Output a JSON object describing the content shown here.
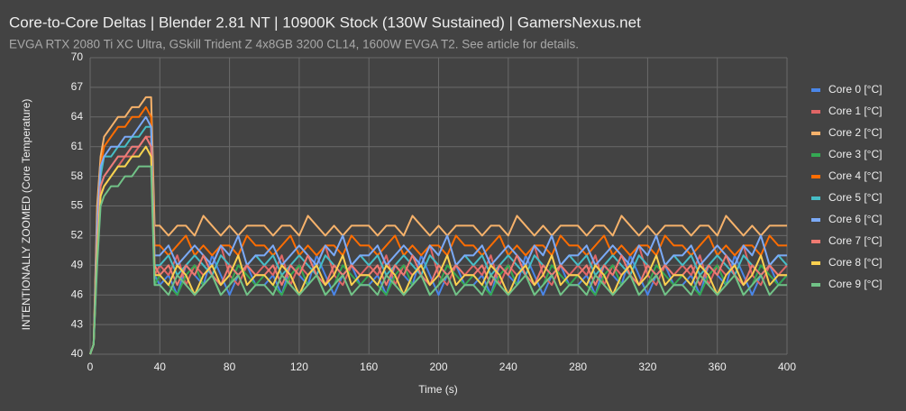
{
  "chart_data": {
    "type": "line",
    "title": "Core-to-Core Deltas | Blender 2.81 NT | 10900K Stock (130W Sustained) | GamersNexus.net",
    "subtitle": "EVGA RTX 2080 Ti XC Ultra, GSkill Trident Z 4x8GB 3200 CL14, 1600W EVGA T2. See article for details.",
    "x_label": "Time (s)",
    "y_label": "INTENTIONALLY ZOOMED (Core Temperature)",
    "xlim": [
      0,
      400
    ],
    "xticks": [
      0,
      40,
      80,
      120,
      160,
      200,
      240,
      280,
      320,
      360,
      400
    ],
    "ylim": [
      40,
      70
    ],
    "yticks": [
      40,
      43,
      46,
      49,
      52,
      55,
      58,
      61,
      64,
      67,
      70
    ],
    "grid": true,
    "legend": "right",
    "x": [
      0,
      2,
      4,
      6,
      8,
      12,
      16,
      20,
      24,
      28,
      32,
      35,
      37,
      40,
      45,
      50,
      55,
      60,
      65,
      70,
      75,
      80,
      85,
      90,
      95,
      100,
      105,
      110,
      115,
      120,
      125,
      130,
      135,
      140,
      145,
      150,
      155,
      160,
      165,
      170,
      175,
      180,
      185,
      190,
      195,
      200,
      205,
      210,
      215,
      220,
      225,
      230,
      235,
      240,
      245,
      250,
      255,
      260,
      265,
      270,
      275,
      280,
      285,
      290,
      295,
      300,
      305,
      310,
      315,
      320,
      325,
      330,
      335,
      340,
      345,
      350,
      355,
      360,
      365,
      370,
      375,
      380,
      385,
      390,
      395,
      400
    ],
    "series": [
      {
        "name": "Core 0 [°C]",
        "color": "#4a86e8",
        "values": [
          40,
          41,
          52,
          57,
          58,
          59,
          60,
          60,
          61,
          61,
          62,
          61,
          48,
          47,
          48,
          46,
          49,
          48,
          47,
          50,
          48,
          46,
          48,
          49,
          47,
          47,
          48,
          46,
          49,
          48,
          47,
          50,
          48,
          46,
          48,
          49,
          47,
          47,
          48,
          46,
          49,
          48,
          47,
          50,
          48,
          46,
          48,
          49,
          47,
          47,
          48,
          46,
          49,
          48,
          47,
          50,
          48,
          46,
          48,
          49,
          47,
          47,
          48,
          46,
          49,
          48,
          47,
          50,
          48,
          46,
          48,
          49,
          47,
          47,
          48,
          46,
          49,
          48,
          47,
          50,
          48,
          46,
          48,
          49,
          47,
          48
        ]
      },
      {
        "name": "Core 1 [°C]",
        "color": "#e06666",
        "values": [
          40,
          41,
          50,
          56,
          57,
          58,
          59,
          60,
          60,
          61,
          62,
          62,
          48,
          49,
          48,
          50,
          47,
          49,
          48,
          49,
          51,
          48,
          47,
          49,
          48,
          49,
          48,
          50,
          47,
          49,
          48,
          49,
          51,
          48,
          47,
          49,
          48,
          49,
          48,
          50,
          47,
          49,
          48,
          49,
          51,
          48,
          47,
          49,
          48,
          49,
          48,
          50,
          47,
          49,
          48,
          49,
          51,
          48,
          47,
          49,
          48,
          49,
          48,
          50,
          47,
          49,
          48,
          49,
          51,
          48,
          47,
          49,
          48,
          49,
          48,
          50,
          47,
          49,
          48,
          49,
          51,
          48,
          47,
          49,
          48,
          49
        ]
      },
      {
        "name": "Core 2 [°C]",
        "color": "#f6b26b",
        "values": [
          40,
          41,
          55,
          60,
          62,
          63,
          64,
          64,
          65,
          65,
          66,
          66,
          53,
          53,
          52,
          53,
          53,
          52,
          54,
          53,
          52,
          53,
          52,
          53,
          53,
          53,
          52,
          53,
          53,
          52,
          54,
          53,
          52,
          53,
          52,
          53,
          53,
          53,
          52,
          53,
          53,
          52,
          54,
          53,
          52,
          53,
          52,
          53,
          53,
          53,
          52,
          53,
          53,
          52,
          54,
          53,
          52,
          53,
          52,
          53,
          53,
          53,
          52,
          53,
          53,
          52,
          54,
          53,
          52,
          53,
          52,
          53,
          53,
          53,
          52,
          53,
          53,
          52,
          54,
          53,
          52,
          53,
          52,
          53,
          53,
          53
        ]
      },
      {
        "name": "Core 3 [°C]",
        "color": "#34a853",
        "values": [
          40,
          41,
          51,
          56,
          57,
          58,
          59,
          59,
          60,
          60,
          61,
          60,
          47,
          48,
          47,
          46,
          48,
          49,
          47,
          48,
          46,
          47,
          49,
          48,
          47,
          48,
          47,
          46,
          48,
          49,
          47,
          48,
          46,
          47,
          49,
          48,
          47,
          48,
          47,
          46,
          48,
          49,
          47,
          48,
          46,
          47,
          49,
          48,
          47,
          48,
          47,
          46,
          48,
          49,
          47,
          48,
          46,
          47,
          49,
          48,
          47,
          48,
          47,
          46,
          48,
          49,
          47,
          48,
          46,
          47,
          49,
          48,
          47,
          48,
          47,
          46,
          48,
          49,
          47,
          48,
          46,
          47,
          49,
          48,
          47,
          48
        ]
      },
      {
        "name": "Core 4 [°C]",
        "color": "#ff6d01",
        "values": [
          40,
          41,
          53,
          59,
          61,
          62,
          63,
          63,
          64,
          64,
          65,
          64,
          51,
          51,
          50,
          51,
          52,
          50,
          51,
          50,
          51,
          51,
          50,
          52,
          51,
          51,
          50,
          51,
          52,
          50,
          51,
          50,
          51,
          51,
          50,
          52,
          51,
          51,
          50,
          51,
          52,
          50,
          51,
          50,
          51,
          51,
          50,
          52,
          51,
          51,
          50,
          51,
          52,
          50,
          51,
          50,
          51,
          51,
          50,
          52,
          51,
          51,
          50,
          51,
          52,
          50,
          51,
          50,
          51,
          51,
          50,
          52,
          51,
          51,
          50,
          51,
          52,
          50,
          51,
          50,
          51,
          51,
          50,
          52,
          51,
          51
        ]
      },
      {
        "name": "Core 5 [°C]",
        "color": "#46bdc6",
        "values": [
          40,
          41,
          52,
          58,
          60,
          60,
          61,
          61,
          62,
          62,
          63,
          63,
          49,
          49,
          50,
          48,
          49,
          50,
          49,
          48,
          50,
          49,
          48,
          49,
          50,
          49,
          50,
          48,
          49,
          50,
          49,
          48,
          50,
          49,
          48,
          49,
          50,
          49,
          50,
          48,
          49,
          50,
          49,
          48,
          50,
          49,
          48,
          49,
          50,
          49,
          50,
          48,
          49,
          50,
          49,
          48,
          50,
          49,
          48,
          49,
          50,
          49,
          50,
          48,
          49,
          50,
          49,
          48,
          50,
          49,
          48,
          49,
          50,
          49,
          50,
          48,
          49,
          50,
          49,
          48,
          50,
          49,
          48,
          49,
          50,
          49
        ]
      },
      {
        "name": "Core 6 [°C]",
        "color": "#7baaf7",
        "values": [
          40,
          41,
          53,
          59,
          60,
          61,
          61,
          62,
          62,
          63,
          64,
          63,
          50,
          50,
          51,
          49,
          50,
          51,
          50,
          49,
          51,
          50,
          52,
          49,
          50,
          50,
          51,
          49,
          50,
          51,
          50,
          49,
          51,
          50,
          52,
          49,
          50,
          50,
          51,
          49,
          50,
          51,
          50,
          49,
          51,
          50,
          52,
          49,
          50,
          50,
          51,
          49,
          50,
          51,
          50,
          49,
          51,
          50,
          52,
          49,
          50,
          50,
          51,
          49,
          50,
          51,
          50,
          49,
          51,
          50,
          52,
          49,
          50,
          50,
          51,
          49,
          50,
          51,
          50,
          49,
          51,
          50,
          52,
          49,
          50,
          50
        ]
      },
      {
        "name": "Core 7 [°C]",
        "color": "#f07b72",
        "values": [
          40,
          41,
          51,
          57,
          58,
          59,
          60,
          60,
          61,
          61,
          62,
          61,
          49,
          48,
          49,
          47,
          49,
          48,
          50,
          48,
          47,
          49,
          48,
          49,
          48,
          48,
          49,
          47,
          49,
          48,
          50,
          48,
          47,
          49,
          48,
          49,
          48,
          48,
          49,
          47,
          49,
          48,
          50,
          48,
          47,
          49,
          48,
          49,
          48,
          48,
          49,
          47,
          49,
          48,
          50,
          48,
          47,
          49,
          48,
          49,
          48,
          48,
          49,
          47,
          49,
          48,
          50,
          48,
          47,
          49,
          48,
          49,
          48,
          48,
          49,
          47,
          49,
          48,
          50,
          48,
          47,
          49,
          48,
          49,
          48,
          48
        ]
      },
      {
        "name": "Core 8 [°C]",
        "color": "#fcd04f",
        "values": [
          40,
          41,
          50,
          56,
          57,
          58,
          59,
          59,
          60,
          60,
          61,
          60,
          48,
          48,
          47,
          49,
          48,
          46,
          48,
          49,
          47,
          48,
          50,
          47,
          48,
          48,
          47,
          49,
          48,
          46,
          48,
          49,
          47,
          48,
          50,
          47,
          48,
          48,
          47,
          49,
          48,
          46,
          48,
          49,
          47,
          48,
          50,
          47,
          48,
          48,
          47,
          49,
          48,
          46,
          48,
          49,
          47,
          48,
          50,
          47,
          48,
          48,
          47,
          49,
          48,
          46,
          48,
          49,
          47,
          48,
          50,
          47,
          48,
          48,
          47,
          49,
          48,
          46,
          48,
          49,
          47,
          48,
          50,
          47,
          48,
          48
        ]
      },
      {
        "name": "Core 9 [°C]",
        "color": "#71c287",
        "values": [
          40,
          41,
          49,
          55,
          56,
          57,
          57,
          58,
          58,
          59,
          59,
          59,
          47,
          47,
          46,
          48,
          47,
          46,
          47,
          48,
          46,
          47,
          48,
          46,
          47,
          47,
          46,
          48,
          47,
          46,
          47,
          48,
          46,
          47,
          48,
          46,
          47,
          47,
          46,
          48,
          47,
          46,
          47,
          48,
          46,
          47,
          48,
          46,
          47,
          47,
          46,
          48,
          47,
          46,
          47,
          48,
          46,
          47,
          48,
          46,
          47,
          47,
          46,
          48,
          47,
          46,
          47,
          48,
          46,
          47,
          48,
          46,
          47,
          47,
          46,
          48,
          47,
          46,
          47,
          48,
          46,
          47,
          48,
          46,
          47,
          47
        ]
      }
    ]
  }
}
